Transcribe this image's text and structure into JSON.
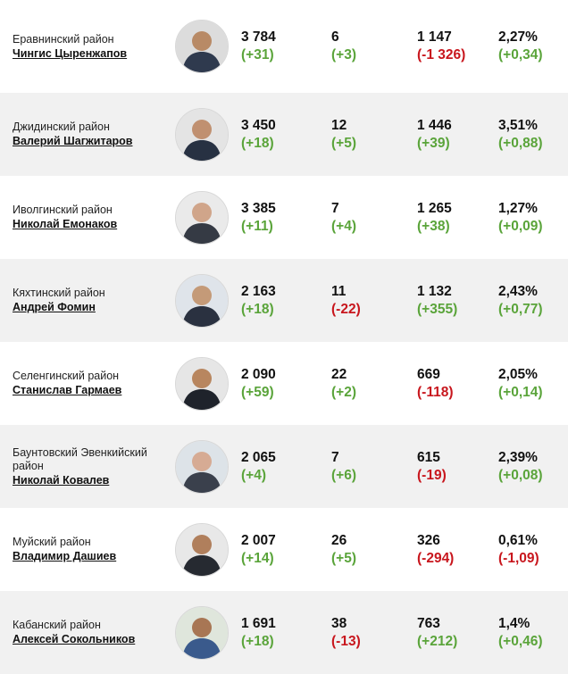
{
  "colors": {
    "positive": "#5aa43a",
    "negative": "#c8161d",
    "alt_row": "#f1f1f1"
  },
  "rows": [
    {
      "district": "Еравнинский район",
      "name": "Чингис Цыренжапов",
      "avatar": "portrait-icon",
      "c1": "3 784",
      "c1d": "(+31)",
      "c1s": "pos",
      "c2": "6",
      "c2d": "(+3)",
      "c2s": "pos",
      "c3": "1 147",
      "c3d": "(-1 326)",
      "c3s": "neg",
      "c4": "2,27%",
      "c4d": "(+0,34)",
      "c4s": "pos"
    },
    {
      "district": "Джидинский район",
      "name": "Валерий Шагжитаров",
      "avatar": "portrait-icon",
      "c1": "3 450",
      "c1d": "(+18)",
      "c1s": "pos",
      "c2": "12",
      "c2d": "(+5)",
      "c2s": "pos",
      "c3": "1 446",
      "c3d": "(+39)",
      "c3s": "pos",
      "c4": "3,51%",
      "c4d": "(+0,88)",
      "c4s": "pos"
    },
    {
      "district": "Иволгинский район",
      "name": "Николай Емонаков",
      "avatar": "portrait-icon",
      "c1": "3 385",
      "c1d": "(+11)",
      "c1s": "pos",
      "c2": "7",
      "c2d": "(+4)",
      "c2s": "pos",
      "c3": "1 265",
      "c3d": "(+38)",
      "c3s": "pos",
      "c4": "1,27%",
      "c4d": "(+0,09)",
      "c4s": "pos"
    },
    {
      "district": "Кяхтинский район",
      "name": "Андрей Фомин",
      "avatar": "portrait-icon",
      "c1": "2 163",
      "c1d": "(+18)",
      "c1s": "pos",
      "c2": "11",
      "c2d": "(-22)",
      "c2s": "neg",
      "c3": "1 132",
      "c3d": "(+355)",
      "c3s": "pos",
      "c4": "2,43%",
      "c4d": "(+0,77)",
      "c4s": "pos"
    },
    {
      "district": "Селенгинский район",
      "name": "Станислав Гармаев",
      "avatar": "portrait-icon",
      "c1": "2 090",
      "c1d": "(+59)",
      "c1s": "pos",
      "c2": "22",
      "c2d": "(+2)",
      "c2s": "pos",
      "c3": "669",
      "c3d": "(-118)",
      "c3s": "neg",
      "c4": "2,05%",
      "c4d": "(+0,14)",
      "c4s": "pos"
    },
    {
      "district": "Баунтовский Эвенкийский район",
      "name": "Николай Ковалев",
      "avatar": "portrait-icon",
      "c1": "2 065",
      "c1d": "(+4)",
      "c1s": "pos",
      "c2": "7",
      "c2d": "(+6)",
      "c2s": "pos",
      "c3": "615",
      "c3d": "(-19)",
      "c3s": "neg",
      "c4": "2,39%",
      "c4d": "(+0,08)",
      "c4s": "pos"
    },
    {
      "district": "Муйский район",
      "name": "Владимир Дашиев",
      "avatar": "portrait-icon",
      "c1": "2 007",
      "c1d": "(+14)",
      "c1s": "pos",
      "c2": "26",
      "c2d": "(+5)",
      "c2s": "pos",
      "c3": "326",
      "c3d": "(-294)",
      "c3s": "neg",
      "c4": "0,61%",
      "c4d": "(-1,09)",
      "c4s": "neg"
    },
    {
      "district": "Кабанский район",
      "name": "Алексей Сокольников",
      "avatar": "portrait-icon",
      "c1": "1 691",
      "c1d": "(+18)",
      "c1s": "pos",
      "c2": "38",
      "c2d": "(-13)",
      "c2s": "neg",
      "c3": "763",
      "c3d": "(+212)",
      "c3s": "pos",
      "c4": "1,4%",
      "c4d": "(+0,46)",
      "c4s": "pos"
    }
  ]
}
